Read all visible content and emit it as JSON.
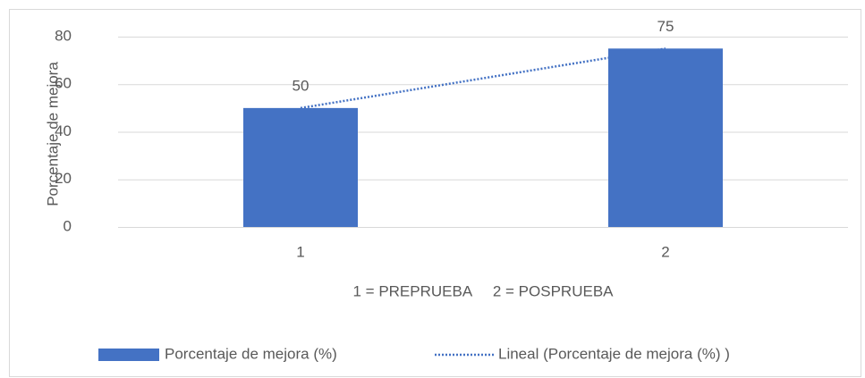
{
  "chart_data": {
    "type": "bar",
    "categories": [
      "1",
      "2"
    ],
    "series": [
      {
        "name": "Porcentaje de mejora (%)",
        "color": "#4472c4",
        "values": [
          50,
          75
        ]
      }
    ],
    "trendline": {
      "name": "Lineal (Porcentaje de mejora (%) )",
      "color": "#4472c4",
      "values": [
        50,
        75
      ]
    },
    "x_label": "1 = PREPRUEBA     2 = POSPRUEBA",
    "y_label": "Porcentaje de mejora",
    "ylim": [
      0,
      80
    ],
    "yticks": [
      0,
      20,
      40,
      60,
      80
    ],
    "grid": true,
    "legend": "bottom"
  }
}
